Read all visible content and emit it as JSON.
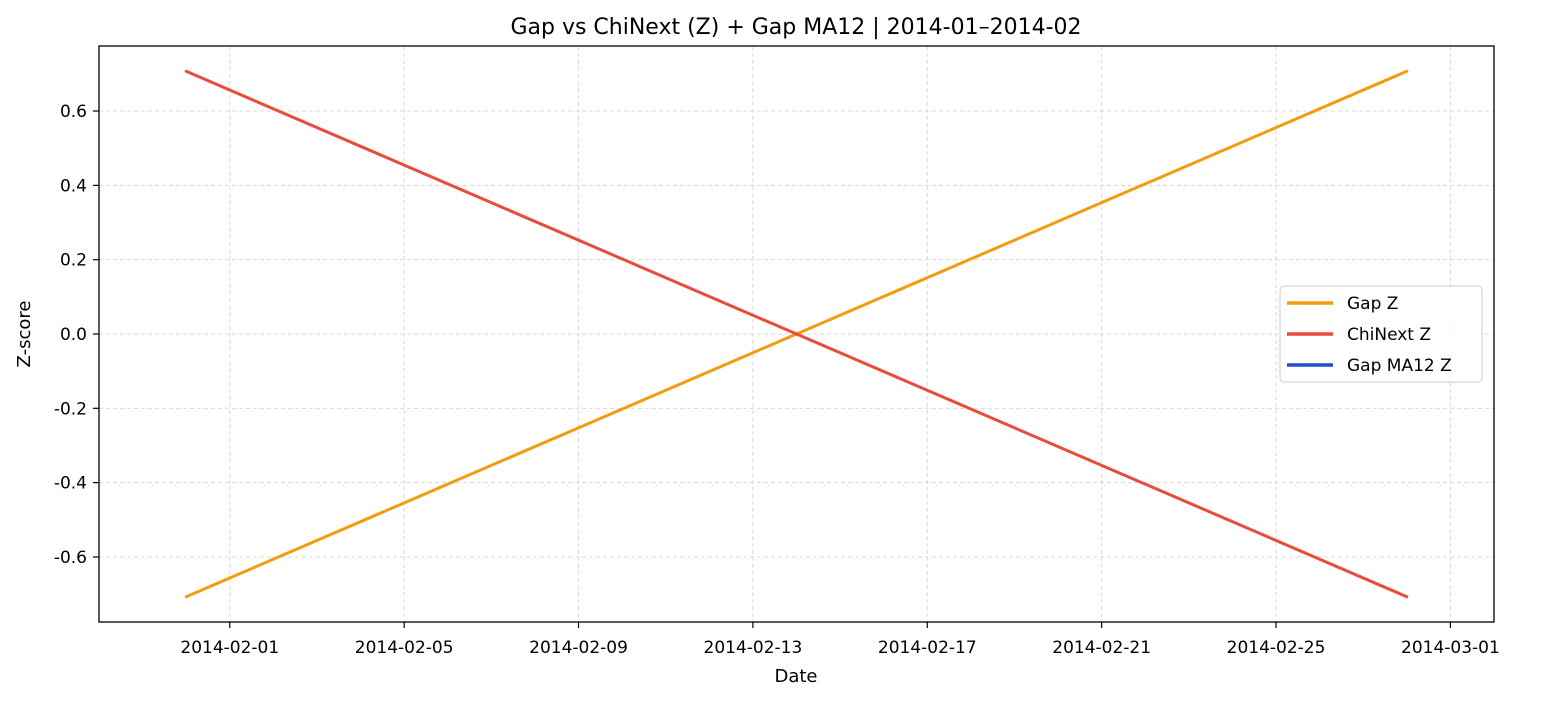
{
  "chart_data": {
    "type": "line",
    "title": "Gap vs ChiNext (Z) + Gap MA12 | 2014-01–2014-02",
    "xlabel": "Date",
    "ylabel": "Z-score",
    "x_range": [
      "2014-01-29",
      "2014-03-02"
    ],
    "ylim": [
      -0.775,
      0.775
    ],
    "x_ticks": [
      "2014-02-01",
      "2014-02-05",
      "2014-02-09",
      "2014-02-13",
      "2014-02-17",
      "2014-02-21",
      "2014-02-25",
      "2014-03-01"
    ],
    "y_ticks": [
      -0.6,
      -0.4,
      -0.2,
      0.0,
      0.2,
      0.4,
      0.6
    ],
    "y_tick_labels": [
      "-0.6",
      "-0.4",
      "-0.2",
      "0.0",
      "0.2",
      "0.4",
      "0.6"
    ],
    "grid": true,
    "legend_position": "center-right",
    "series": [
      {
        "name": "Gap Z",
        "color": "#f39c12",
        "x": [
          "2014-01-31",
          "2014-02-28"
        ],
        "values": [
          -0.707,
          0.707
        ]
      },
      {
        "name": "ChiNext Z",
        "color": "#e74c3c",
        "x": [
          "2014-01-31",
          "2014-02-28"
        ],
        "values": [
          0.707,
          -0.707
        ]
      },
      {
        "name": "Gap MA12 Z",
        "color": "#1f4fd1",
        "x": [],
        "values": []
      }
    ]
  }
}
